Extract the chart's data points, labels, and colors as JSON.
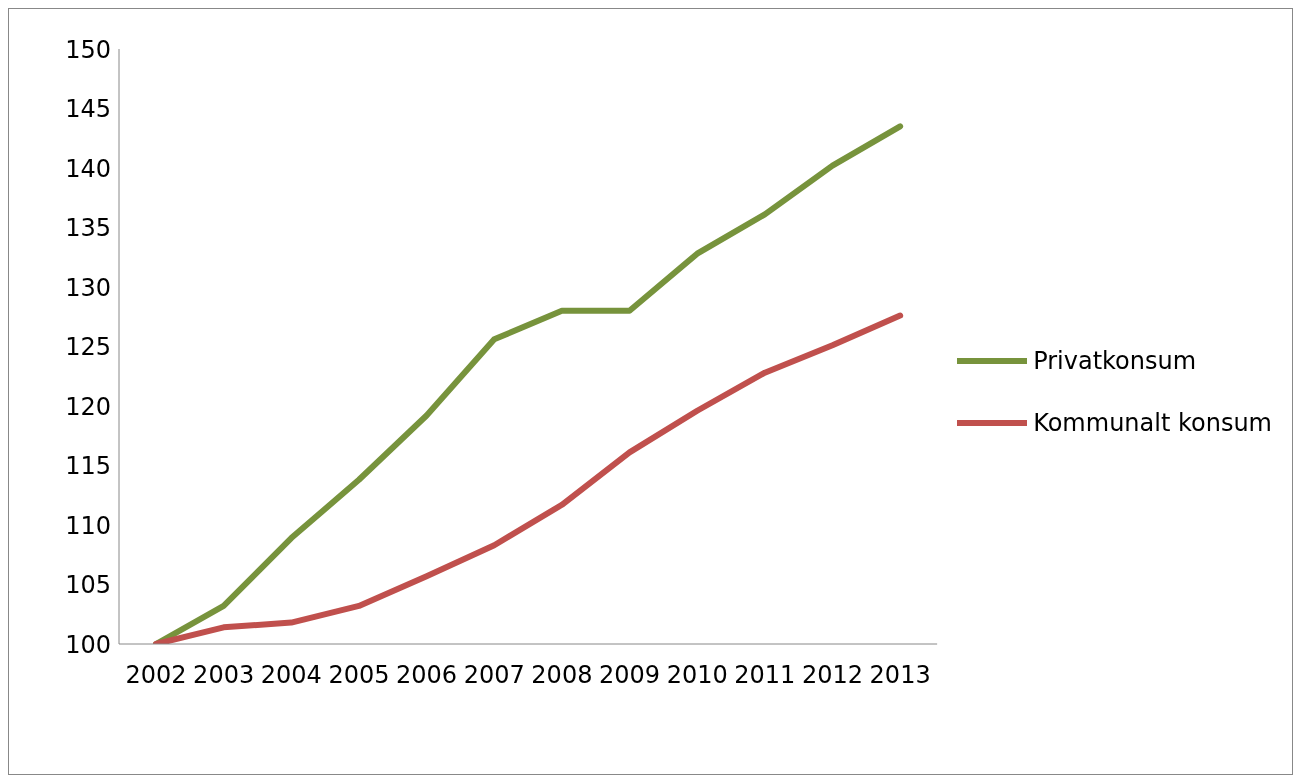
{
  "chart_data": {
    "type": "line",
    "categories": [
      "2002",
      "2003",
      "2004",
      "2005",
      "2006",
      "2007",
      "2008",
      "2009",
      "2010",
      "2011",
      "2012",
      "2013"
    ],
    "series": [
      {
        "name": "Privatkonsum",
        "color": "#77933c",
        "values": [
          100,
          103.2,
          108.9,
          113.8,
          119.2,
          125.6,
          128,
          128,
          132.8,
          136.1,
          140.2,
          143.5
        ]
      },
      {
        "name": "Kommunalt konsum",
        "color": "#c0504d",
        "values": [
          100,
          101.4,
          101.8,
          103.2,
          105.7,
          108.3,
          111.7,
          116.1,
          119.6,
          122.8,
          125.1,
          127.6
        ]
      }
    ],
    "ylim": [
      100,
      150
    ],
    "yticks": [
      100,
      105,
      110,
      115,
      120,
      125,
      130,
      135,
      140,
      145,
      150
    ],
    "grid": false,
    "legend": "right",
    "marker": "none",
    "line_style": "solid"
  }
}
